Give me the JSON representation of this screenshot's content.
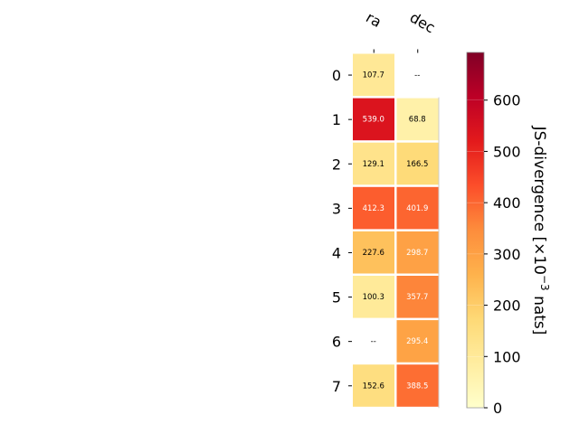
{
  "chart_data": {
    "type": "heatmap",
    "columns": [
      "ra",
      "dec"
    ],
    "rows": [
      "0",
      "1",
      "2",
      "3",
      "4",
      "5",
      "6",
      "7"
    ],
    "values": [
      [
        107.7,
        null
      ],
      [
        539.0,
        68.8
      ],
      [
        129.1,
        166.5
      ],
      [
        412.3,
        401.9
      ],
      [
        227.6,
        298.7
      ],
      [
        100.3,
        357.7
      ],
      [
        null,
        295.4
      ],
      [
        152.6,
        388.5
      ]
    ],
    "cell_labels": [
      [
        "107.7",
        "--"
      ],
      [
        "539.0",
        "68.8"
      ],
      [
        "129.1",
        "166.5"
      ],
      [
        "412.3",
        "401.9"
      ],
      [
        "227.6",
        "298.7"
      ],
      [
        "100.3",
        "357.7"
      ],
      [
        "--",
        "295.4"
      ],
      [
        "152.6",
        "388.5"
      ]
    ],
    "colorbar": {
      "label_main": "JS-divergence [×10",
      "label_exp": "−3",
      "label_end": " nats]",
      "range": [
        0,
        693
      ],
      "ticks": [
        0,
        100,
        200,
        300,
        400,
        500,
        600
      ],
      "tick_labels": [
        "0",
        "100",
        "200",
        "300",
        "400",
        "500",
        "600"
      ],
      "colormap": "YlOrRd"
    }
  }
}
